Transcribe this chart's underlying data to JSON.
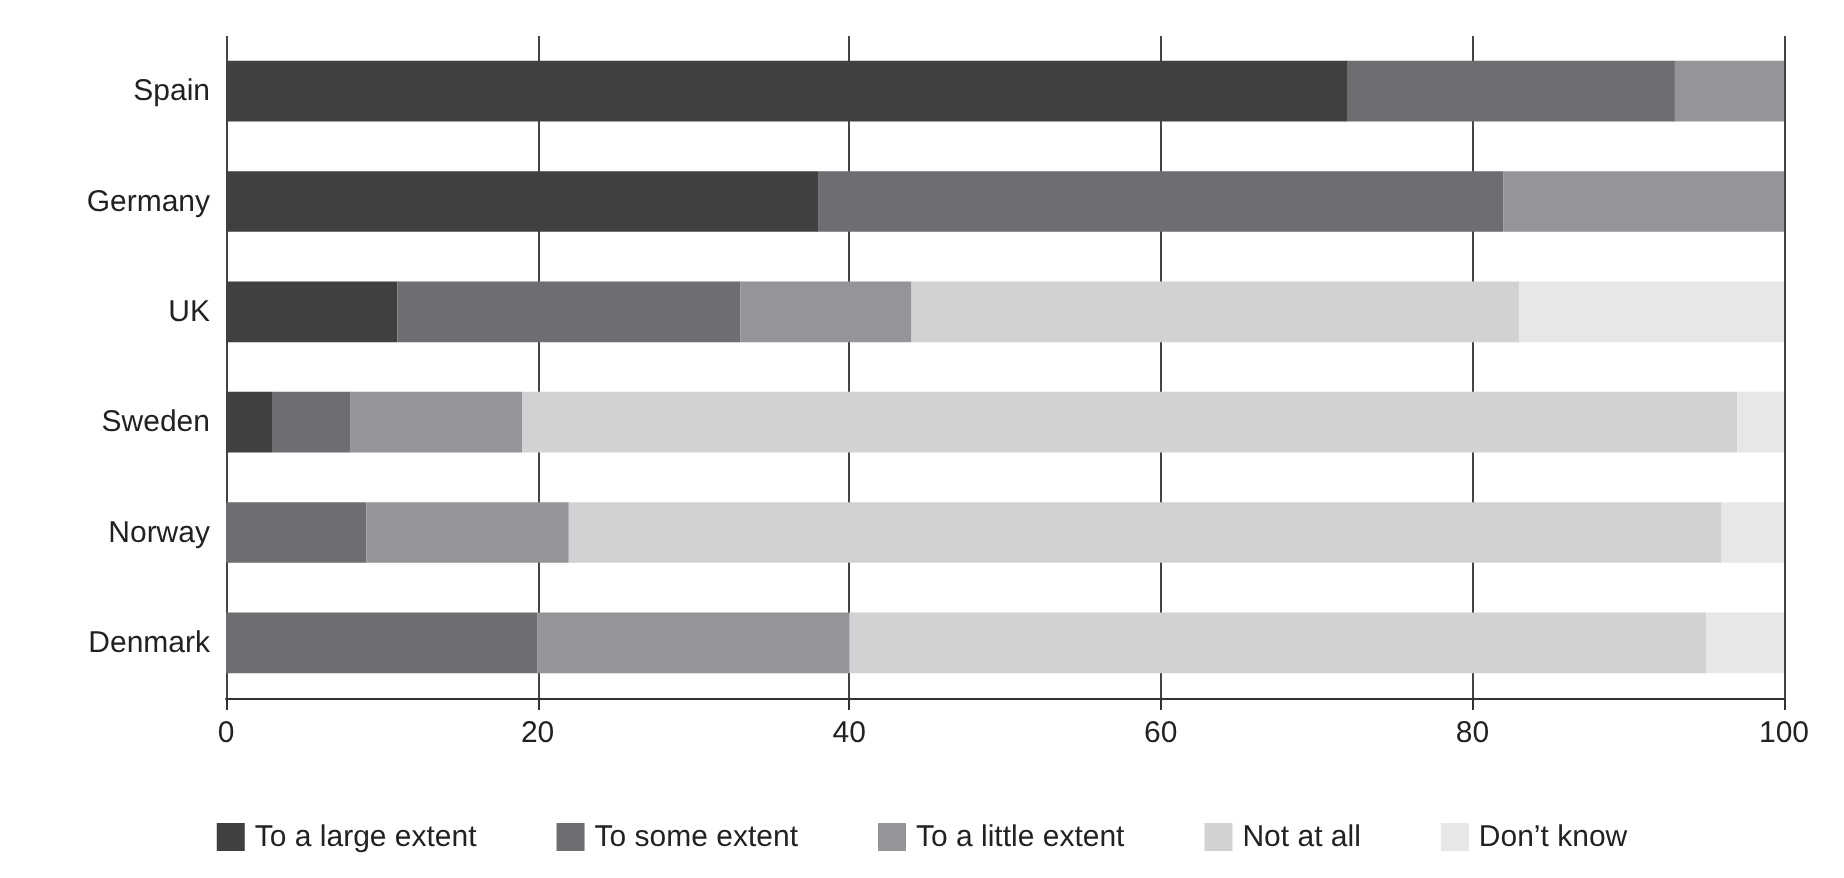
{
  "chart_data": {
    "type": "bar",
    "orientation": "horizontal",
    "stacked": true,
    "categories": [
      "Spain",
      "Germany",
      "UK",
      "Sweden",
      "Norway",
      "Denmark"
    ],
    "series": [
      {
        "name": "To a large extent",
        "color": "#404040",
        "values": [
          72,
          38,
          11,
          3,
          0,
          0
        ]
      },
      {
        "name": "To some extent",
        "color": "#6d6e71",
        "values": [
          21,
          44,
          22,
          5,
          9,
          20
        ]
      },
      {
        "name": "To a little extent",
        "color": "#939598",
        "values": [
          7,
          18,
          11,
          11,
          13,
          20
        ]
      },
      {
        "name": "Not at all",
        "color": "#d1d2d4",
        "values": [
          0,
          0,
          39,
          78,
          74,
          55
        ]
      },
      {
        "name": "Don’t know",
        "color": "#e6e7e8",
        "values": [
          0,
          0,
          17,
          3,
          4,
          5
        ]
      }
    ],
    "xlim": [
      0,
      100
    ],
    "xticks": [
      0,
      20,
      40,
      60,
      80,
      100
    ],
    "grid": "x",
    "legend": "bottom"
  }
}
